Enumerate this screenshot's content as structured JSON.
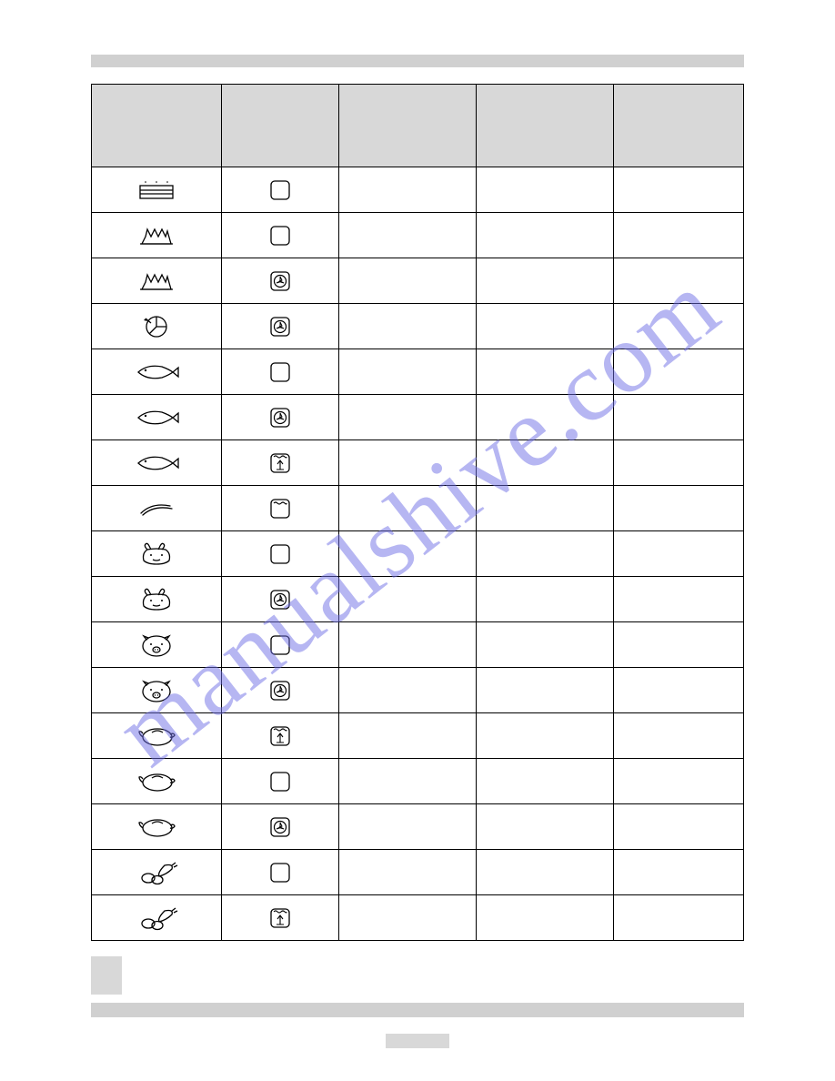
{
  "watermark_text": "manualshive.com",
  "table": {
    "columns": [
      "",
      "",
      "",
      "",
      ""
    ],
    "rows": [
      {
        "food": "layer-cake",
        "mode": "conventional"
      },
      {
        "food": "bundt-cake",
        "mode": "conventional"
      },
      {
        "food": "bundt-cake",
        "mode": "fan"
      },
      {
        "food": "pizza",
        "mode": "fan"
      },
      {
        "food": "fish",
        "mode": "conventional"
      },
      {
        "food": "fish",
        "mode": "fan"
      },
      {
        "food": "fish",
        "mode": "grill-fan"
      },
      {
        "food": "sausages",
        "mode": "grill"
      },
      {
        "food": "beef",
        "mode": "conventional"
      },
      {
        "food": "beef",
        "mode": "fan"
      },
      {
        "food": "pork",
        "mode": "conventional"
      },
      {
        "food": "pork",
        "mode": "fan"
      },
      {
        "food": "poultry",
        "mode": "grill-fan"
      },
      {
        "food": "poultry",
        "mode": "conventional"
      },
      {
        "food": "poultry",
        "mode": "fan"
      },
      {
        "food": "vegetables",
        "mode": "conventional"
      },
      {
        "food": "vegetables",
        "mode": "grill-fan"
      }
    ]
  },
  "icons": {
    "stroke": "#000000",
    "stroke_width": 1.3
  }
}
